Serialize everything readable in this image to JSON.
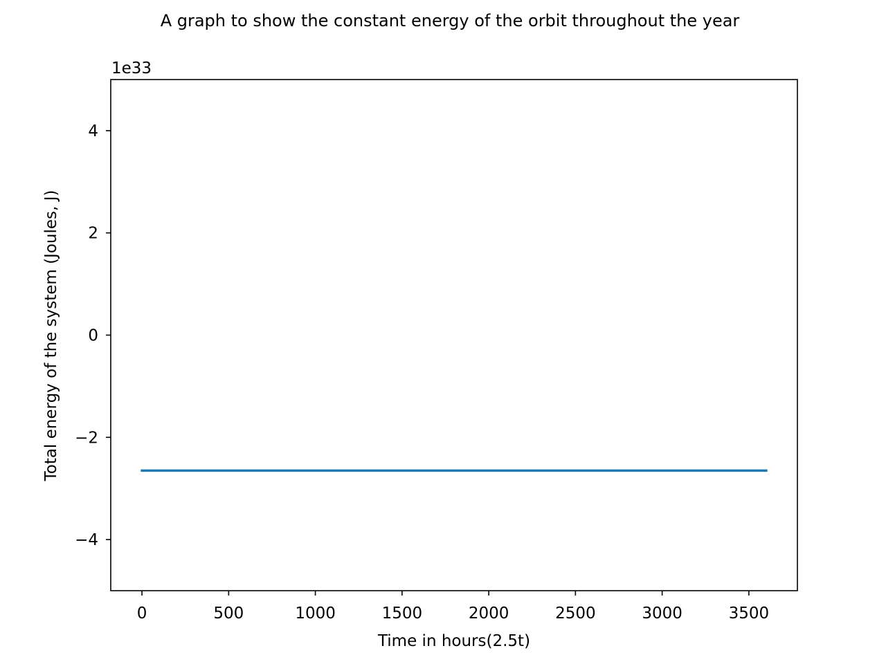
{
  "chart_data": {
    "type": "line",
    "title": "A graph to show the constant energy of the orbit throughout the year",
    "xlabel": "Time in hours(2.5t)",
    "ylabel": "Total energy of the system (Joules, J)",
    "y_offset_label": "1e33",
    "xlim": [
      -180,
      3780
    ],
    "ylim": [
      -5,
      5
    ],
    "xticks": [
      0,
      500,
      1000,
      1500,
      2000,
      2500,
      3000,
      3500
    ],
    "xtick_labels": [
      "0",
      "500",
      "1000",
      "1500",
      "2000",
      "2500",
      "3000",
      "3500"
    ],
    "yticks": [
      -4,
      -2,
      0,
      2,
      4
    ],
    "ytick_labels": [
      "−4",
      "−2",
      "0",
      "2",
      "4"
    ],
    "grid": false,
    "series": [
      {
        "color": "#1f77b4",
        "x": [
          0,
          3600
        ],
        "y": [
          -2.65,
          -2.65
        ]
      }
    ]
  }
}
